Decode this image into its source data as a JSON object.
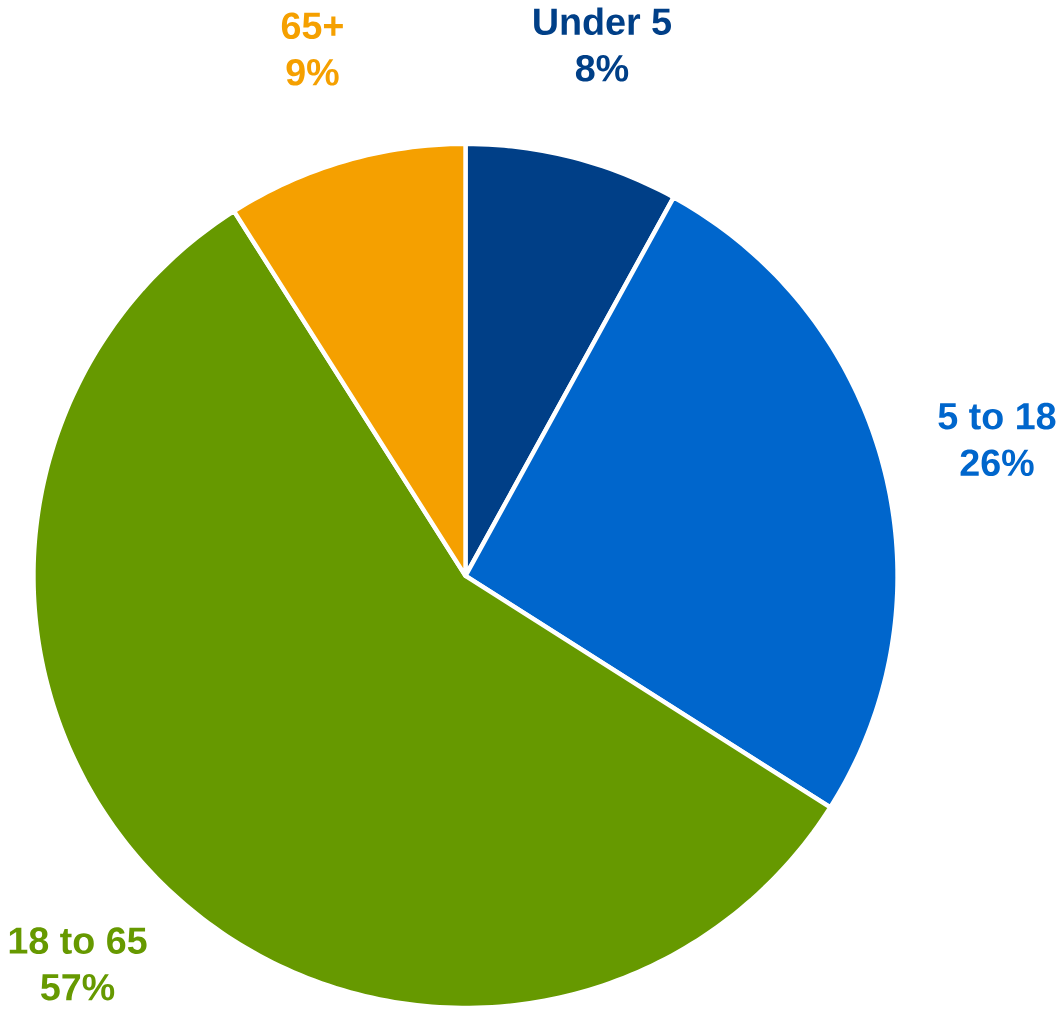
{
  "chart_data": {
    "type": "pie",
    "categories": [
      "Under 5",
      "5 to 18",
      "18 to 65",
      "65+"
    ],
    "values": [
      8,
      26,
      57,
      9
    ],
    "value_labels": [
      "8%",
      "26%",
      "57%",
      "9%"
    ],
    "colors": [
      "#003f87",
      "#0066cc",
      "#669900",
      "#f5a000"
    ]
  }
}
